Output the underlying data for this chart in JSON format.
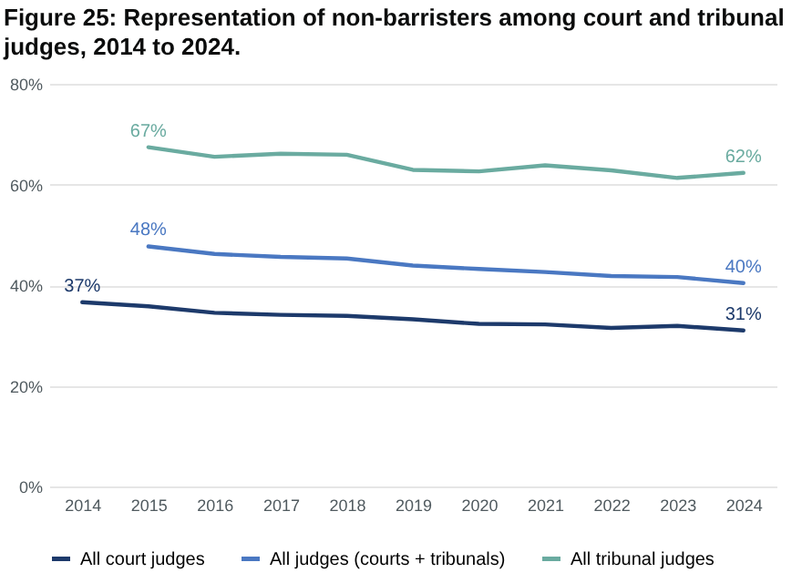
{
  "chart_data": {
    "type": "line",
    "title": "Figure 25: Representation of non-barristers among court and tribunal judges, 2014 to 2024.",
    "categories": [
      "2014",
      "2015",
      "2016",
      "2017",
      "2018",
      "2019",
      "2020",
      "2021",
      "2022",
      "2023",
      "2024"
    ],
    "series": [
      {
        "name": "All court judges",
        "color": "#1d3a6b",
        "values": [
          36.6,
          35.8,
          34.5,
          34.1,
          33.9,
          33.2,
          32.3,
          32.2,
          31.5,
          31.9,
          31.0
        ],
        "value_labels": [
          "37%",
          null,
          null,
          null,
          null,
          null,
          null,
          null,
          null,
          null,
          "31%"
        ]
      },
      {
        "name": "All judges (courts + tribunals)",
        "color": "#4a78c2",
        "values": [
          null,
          47.7,
          46.2,
          45.6,
          45.3,
          43.9,
          43.2,
          42.6,
          41.8,
          41.6,
          40.4
        ],
        "value_labels": [
          null,
          "48%",
          null,
          null,
          null,
          null,
          null,
          null,
          null,
          null,
          "40%"
        ]
      },
      {
        "name": "All tribunal judges",
        "color": "#6aaba0",
        "values": [
          null,
          67.4,
          65.5,
          66.1,
          65.9,
          62.9,
          62.6,
          63.8,
          62.8,
          61.3,
          62.3
        ],
        "value_labels": [
          null,
          "67%",
          null,
          null,
          null,
          null,
          null,
          null,
          null,
          null,
          "62%"
        ]
      }
    ],
    "ylim": [
      0,
      80
    ],
    "yticks": [
      {
        "value": 0,
        "label": "0%"
      },
      {
        "value": 20,
        "label": "20%"
      },
      {
        "value": 40,
        "label": "40%"
      },
      {
        "value": 60,
        "label": "60%"
      },
      {
        "value": 80,
        "label": "80%"
      }
    ],
    "grid": "y",
    "legend": "bottom",
    "marker": "none",
    "line_style": "solid"
  }
}
